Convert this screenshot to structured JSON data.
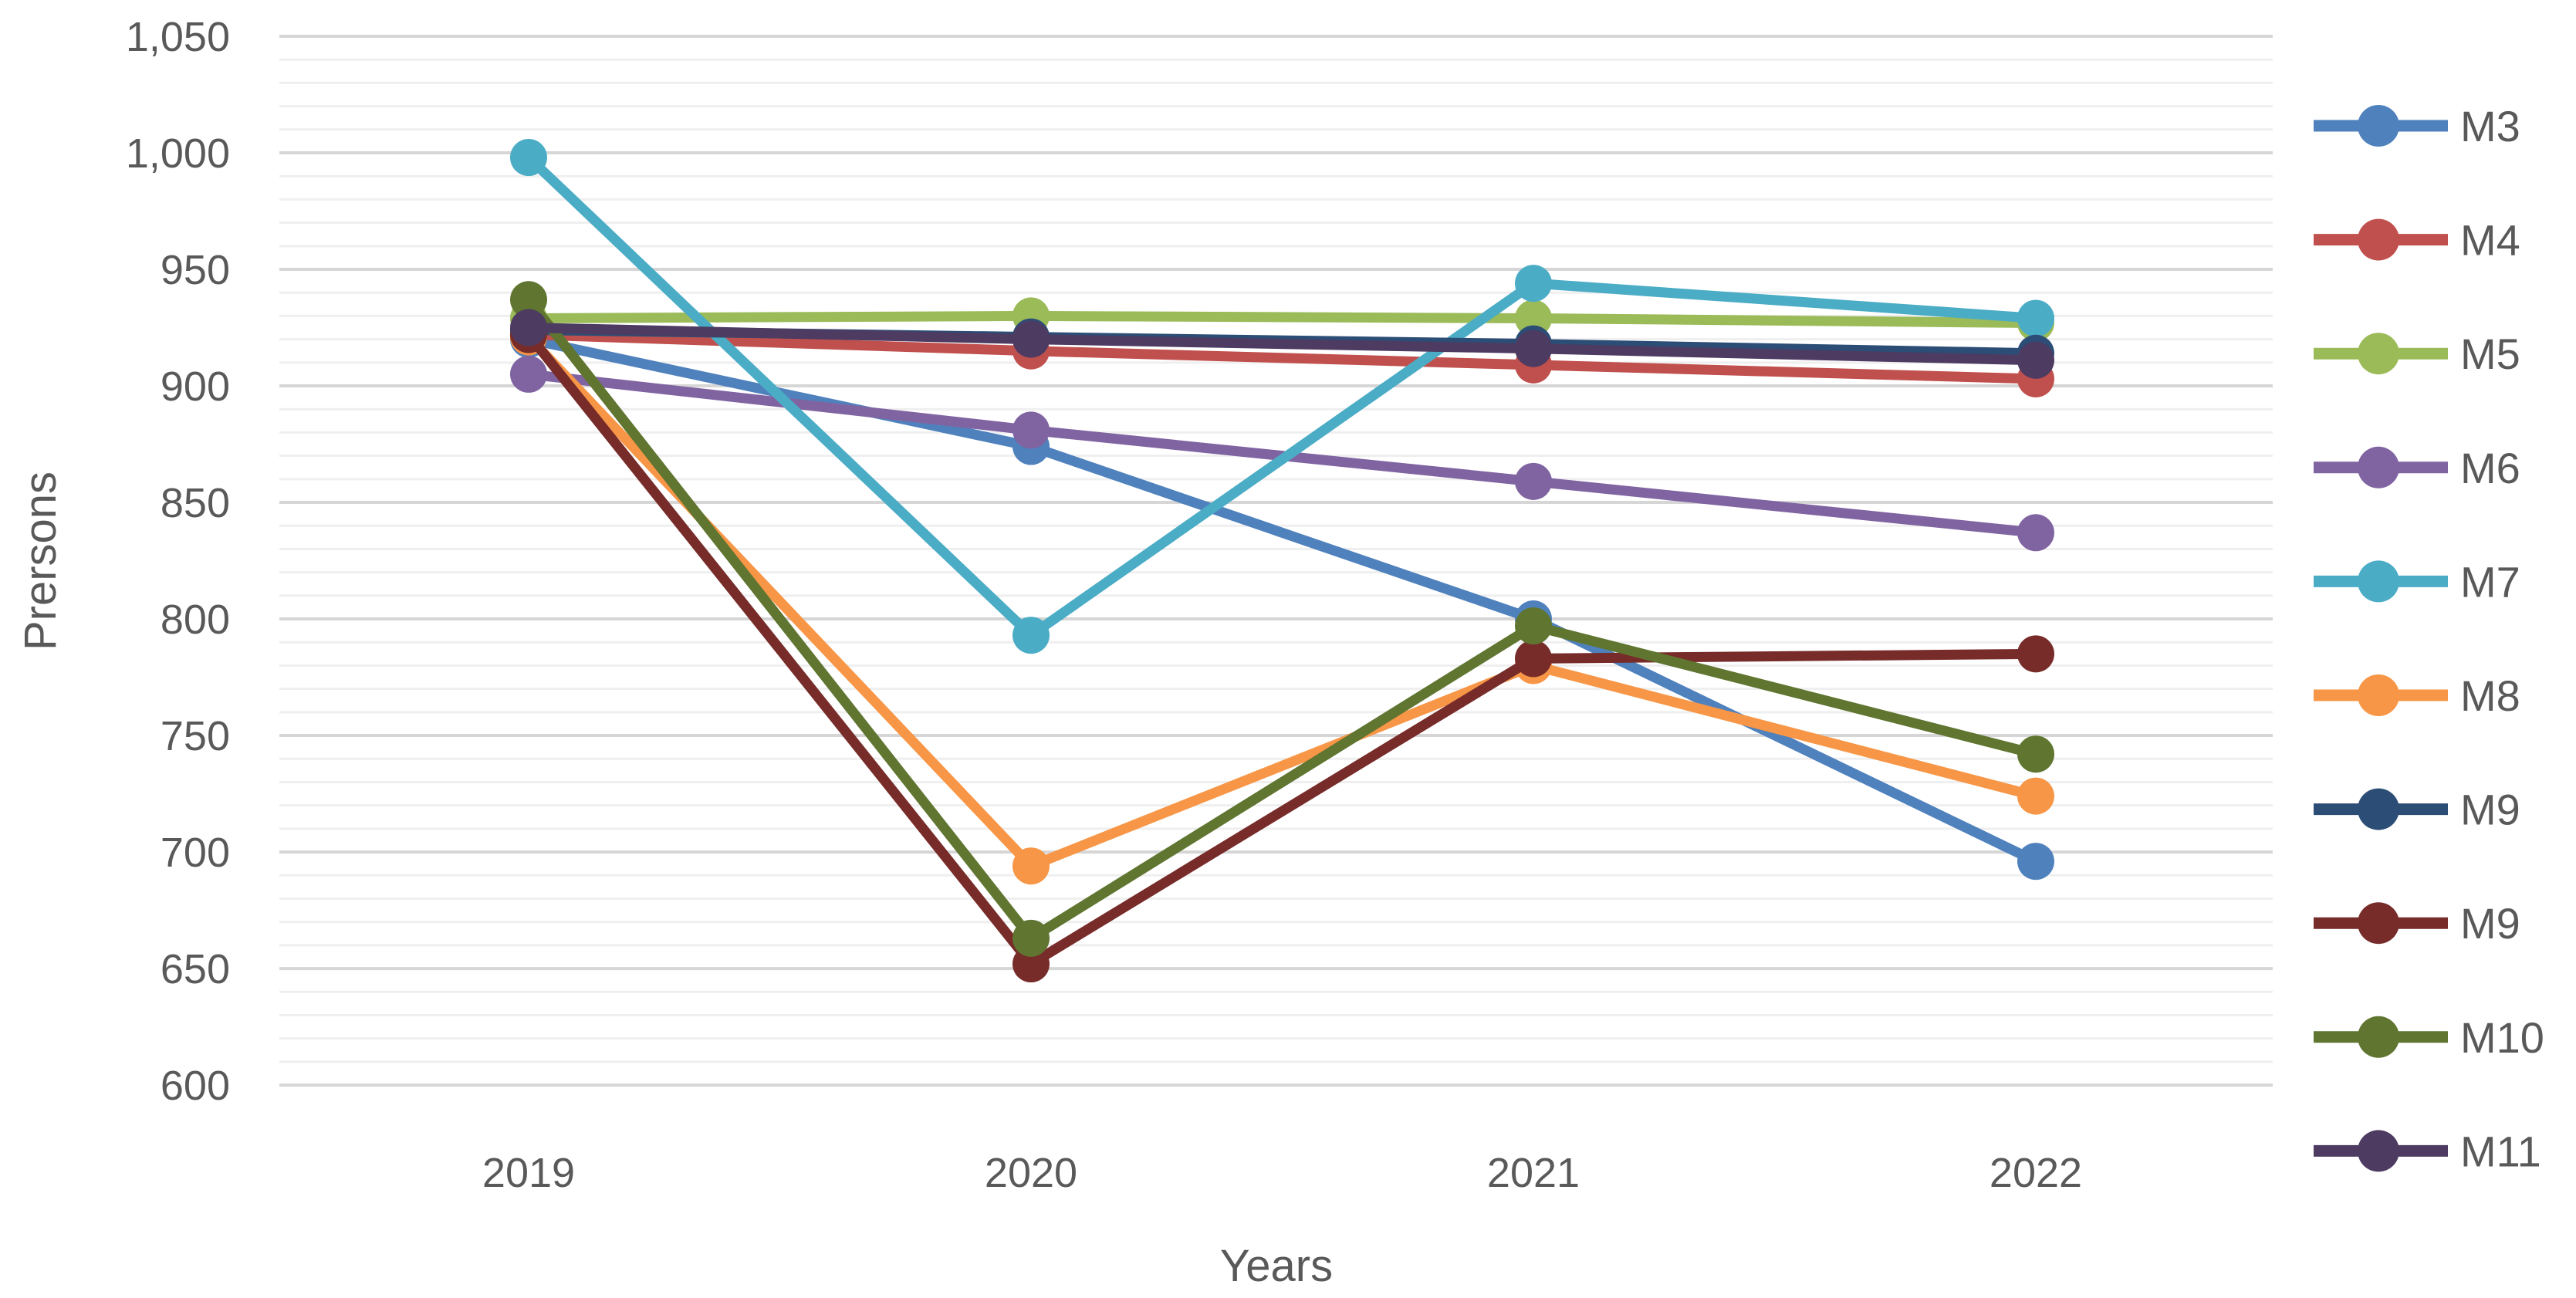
{
  "chart_data": {
    "type": "line",
    "title": "",
    "xlabel": "Years",
    "ylabel": "Prersons",
    "categories": [
      "2019",
      "2020",
      "2021",
      "2022"
    ],
    "ylim": [
      600,
      1050
    ],
    "y_major_step": 50,
    "y_minor_step": 10,
    "grid": true,
    "legend_position": "right",
    "y_ticks": [
      {
        "v": 600,
        "label": "600"
      },
      {
        "v": 650,
        "label": "650"
      },
      {
        "v": 700,
        "label": "700"
      },
      {
        "v": 750,
        "label": "750"
      },
      {
        "v": 800,
        "label": "800"
      },
      {
        "v": 850,
        "label": "850"
      },
      {
        "v": 900,
        "label": "900"
      },
      {
        "v": 950,
        "label": "950"
      },
      {
        "v": 1000,
        "label": "1,000"
      },
      {
        "v": 1050,
        "label": "1,050"
      }
    ],
    "series": [
      {
        "name": "M3",
        "color": "#4F81BD",
        "values": [
          920,
          874,
          800,
          696
        ]
      },
      {
        "name": "M4",
        "color": "#C0504D",
        "values": [
          922,
          915,
          909,
          903
        ]
      },
      {
        "name": "M5",
        "color": "#9BBB59",
        "values": [
          929,
          930,
          929,
          927
        ]
      },
      {
        "name": "M6",
        "color": "#8064A2",
        "values": [
          905,
          881,
          859,
          837
        ]
      },
      {
        "name": "M7",
        "color": "#4BACC6",
        "values": [
          998,
          793,
          944,
          929
        ]
      },
      {
        "name": "M8",
        "color": "#F79646",
        "values": [
          921,
          694,
          780,
          724
        ]
      },
      {
        "name": "M9",
        "color": "#2C4D75",
        "values": [
          924,
          921,
          918,
          914
        ]
      },
      {
        "name": "M9",
        "color": "#772C2A",
        "values": [
          922,
          652,
          783,
          785
        ]
      },
      {
        "name": "M10",
        "color": "#5F7530",
        "values": [
          937,
          663,
          797,
          742
        ]
      },
      {
        "name": "M11",
        "color": "#4D3B62",
        "values": [
          925,
          920,
          916,
          911
        ]
      }
    ]
  }
}
